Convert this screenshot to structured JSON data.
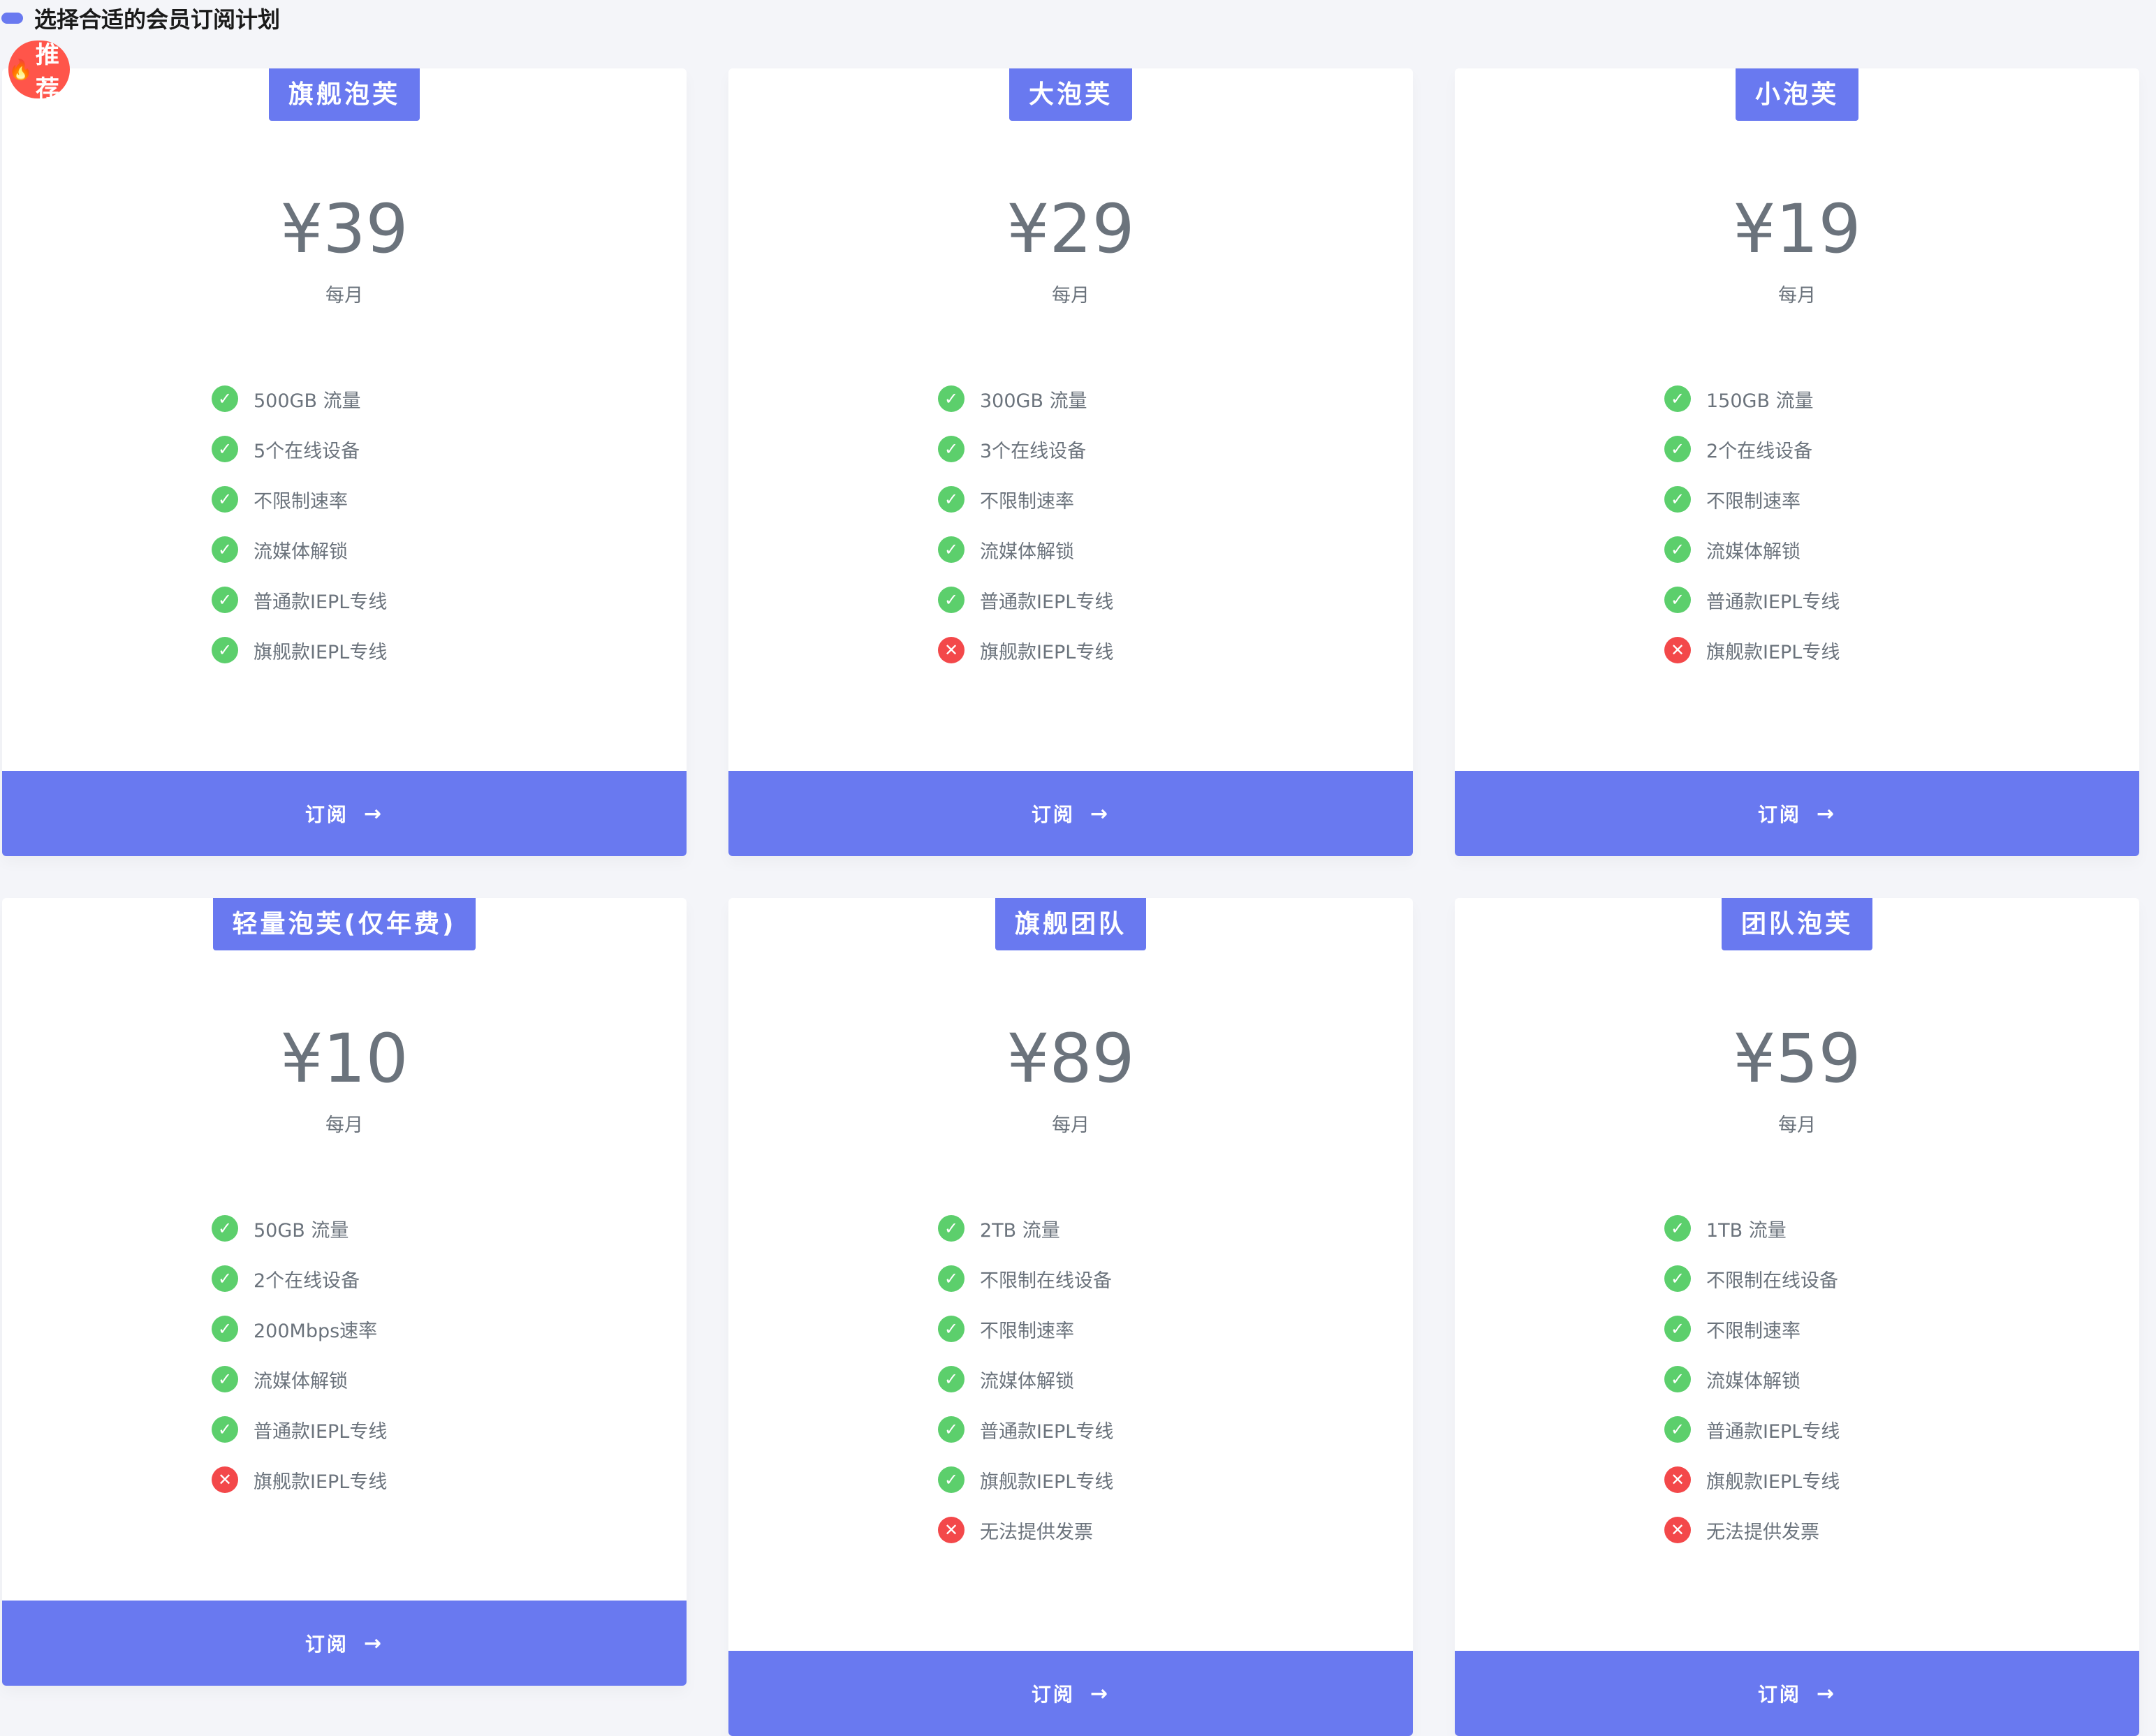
{
  "header": {
    "title": "选择合适的会员订阅计划"
  },
  "badge": {
    "label": "推荐",
    "icon": "fire-icon"
  },
  "colors": {
    "accent": "#6979f0",
    "badge": "#ff554a",
    "check": "#5ccf6c",
    "cross": "#f3484a"
  },
  "plans": [
    {
      "name": "旗舰泡芙",
      "price": "¥39",
      "period": "每月",
      "button": "订阅",
      "features": [
        {
          "text": "500GB 流量",
          "ok": true
        },
        {
          "text": "5个在线设备",
          "ok": true
        },
        {
          "text": "不限制速率",
          "ok": true
        },
        {
          "text": "流媒体解锁",
          "ok": true
        },
        {
          "text": "普通款IEPL专线",
          "ok": true
        },
        {
          "text": "旗舰款IEPL专线",
          "ok": true
        }
      ]
    },
    {
      "name": "大泡芙",
      "price": "¥29",
      "period": "每月",
      "button": "订阅",
      "features": [
        {
          "text": "300GB 流量",
          "ok": true
        },
        {
          "text": "3个在线设备",
          "ok": true
        },
        {
          "text": "不限制速率",
          "ok": true
        },
        {
          "text": "流媒体解锁",
          "ok": true
        },
        {
          "text": "普通款IEPL专线",
          "ok": true
        },
        {
          "text": "旗舰款IEPL专线",
          "ok": false
        }
      ]
    },
    {
      "name": "小泡芙",
      "price": "¥19",
      "period": "每月",
      "button": "订阅",
      "features": [
        {
          "text": "150GB 流量",
          "ok": true
        },
        {
          "text": "2个在线设备",
          "ok": true
        },
        {
          "text": "不限制速率",
          "ok": true
        },
        {
          "text": "流媒体解锁",
          "ok": true
        },
        {
          "text": "普通款IEPL专线",
          "ok": true
        },
        {
          "text": "旗舰款IEPL专线",
          "ok": false
        }
      ]
    },
    {
      "name": "轻量泡芙(仅年费)",
      "price": "¥10",
      "period": "每月",
      "button": "订阅",
      "features": [
        {
          "text": "50GB 流量",
          "ok": true
        },
        {
          "text": "2个在线设备",
          "ok": true
        },
        {
          "text": "200Mbps速率",
          "ok": true
        },
        {
          "text": "流媒体解锁",
          "ok": true
        },
        {
          "text": "普通款IEPL专线",
          "ok": true
        },
        {
          "text": "旗舰款IEPL专线",
          "ok": false
        }
      ]
    },
    {
      "name": "旗舰团队",
      "price": "¥89",
      "period": "每月",
      "button": "订阅",
      "features": [
        {
          "text": "2TB 流量",
          "ok": true
        },
        {
          "text": "不限制在线设备",
          "ok": true
        },
        {
          "text": "不限制速率",
          "ok": true
        },
        {
          "text": "流媒体解锁",
          "ok": true
        },
        {
          "text": "普通款IEPL专线",
          "ok": true
        },
        {
          "text": "旗舰款IEPL专线",
          "ok": true
        },
        {
          "text": "无法提供发票",
          "ok": false
        }
      ]
    },
    {
      "name": "团队泡芙",
      "price": "¥59",
      "period": "每月",
      "button": "订阅",
      "features": [
        {
          "text": "1TB 流量",
          "ok": true
        },
        {
          "text": "不限制在线设备",
          "ok": true
        },
        {
          "text": "不限制速率",
          "ok": true
        },
        {
          "text": "流媒体解锁",
          "ok": true
        },
        {
          "text": "普通款IEPL专线",
          "ok": true
        },
        {
          "text": "旗舰款IEPL专线",
          "ok": false
        },
        {
          "text": "无法提供发票",
          "ok": false
        }
      ]
    }
  ]
}
